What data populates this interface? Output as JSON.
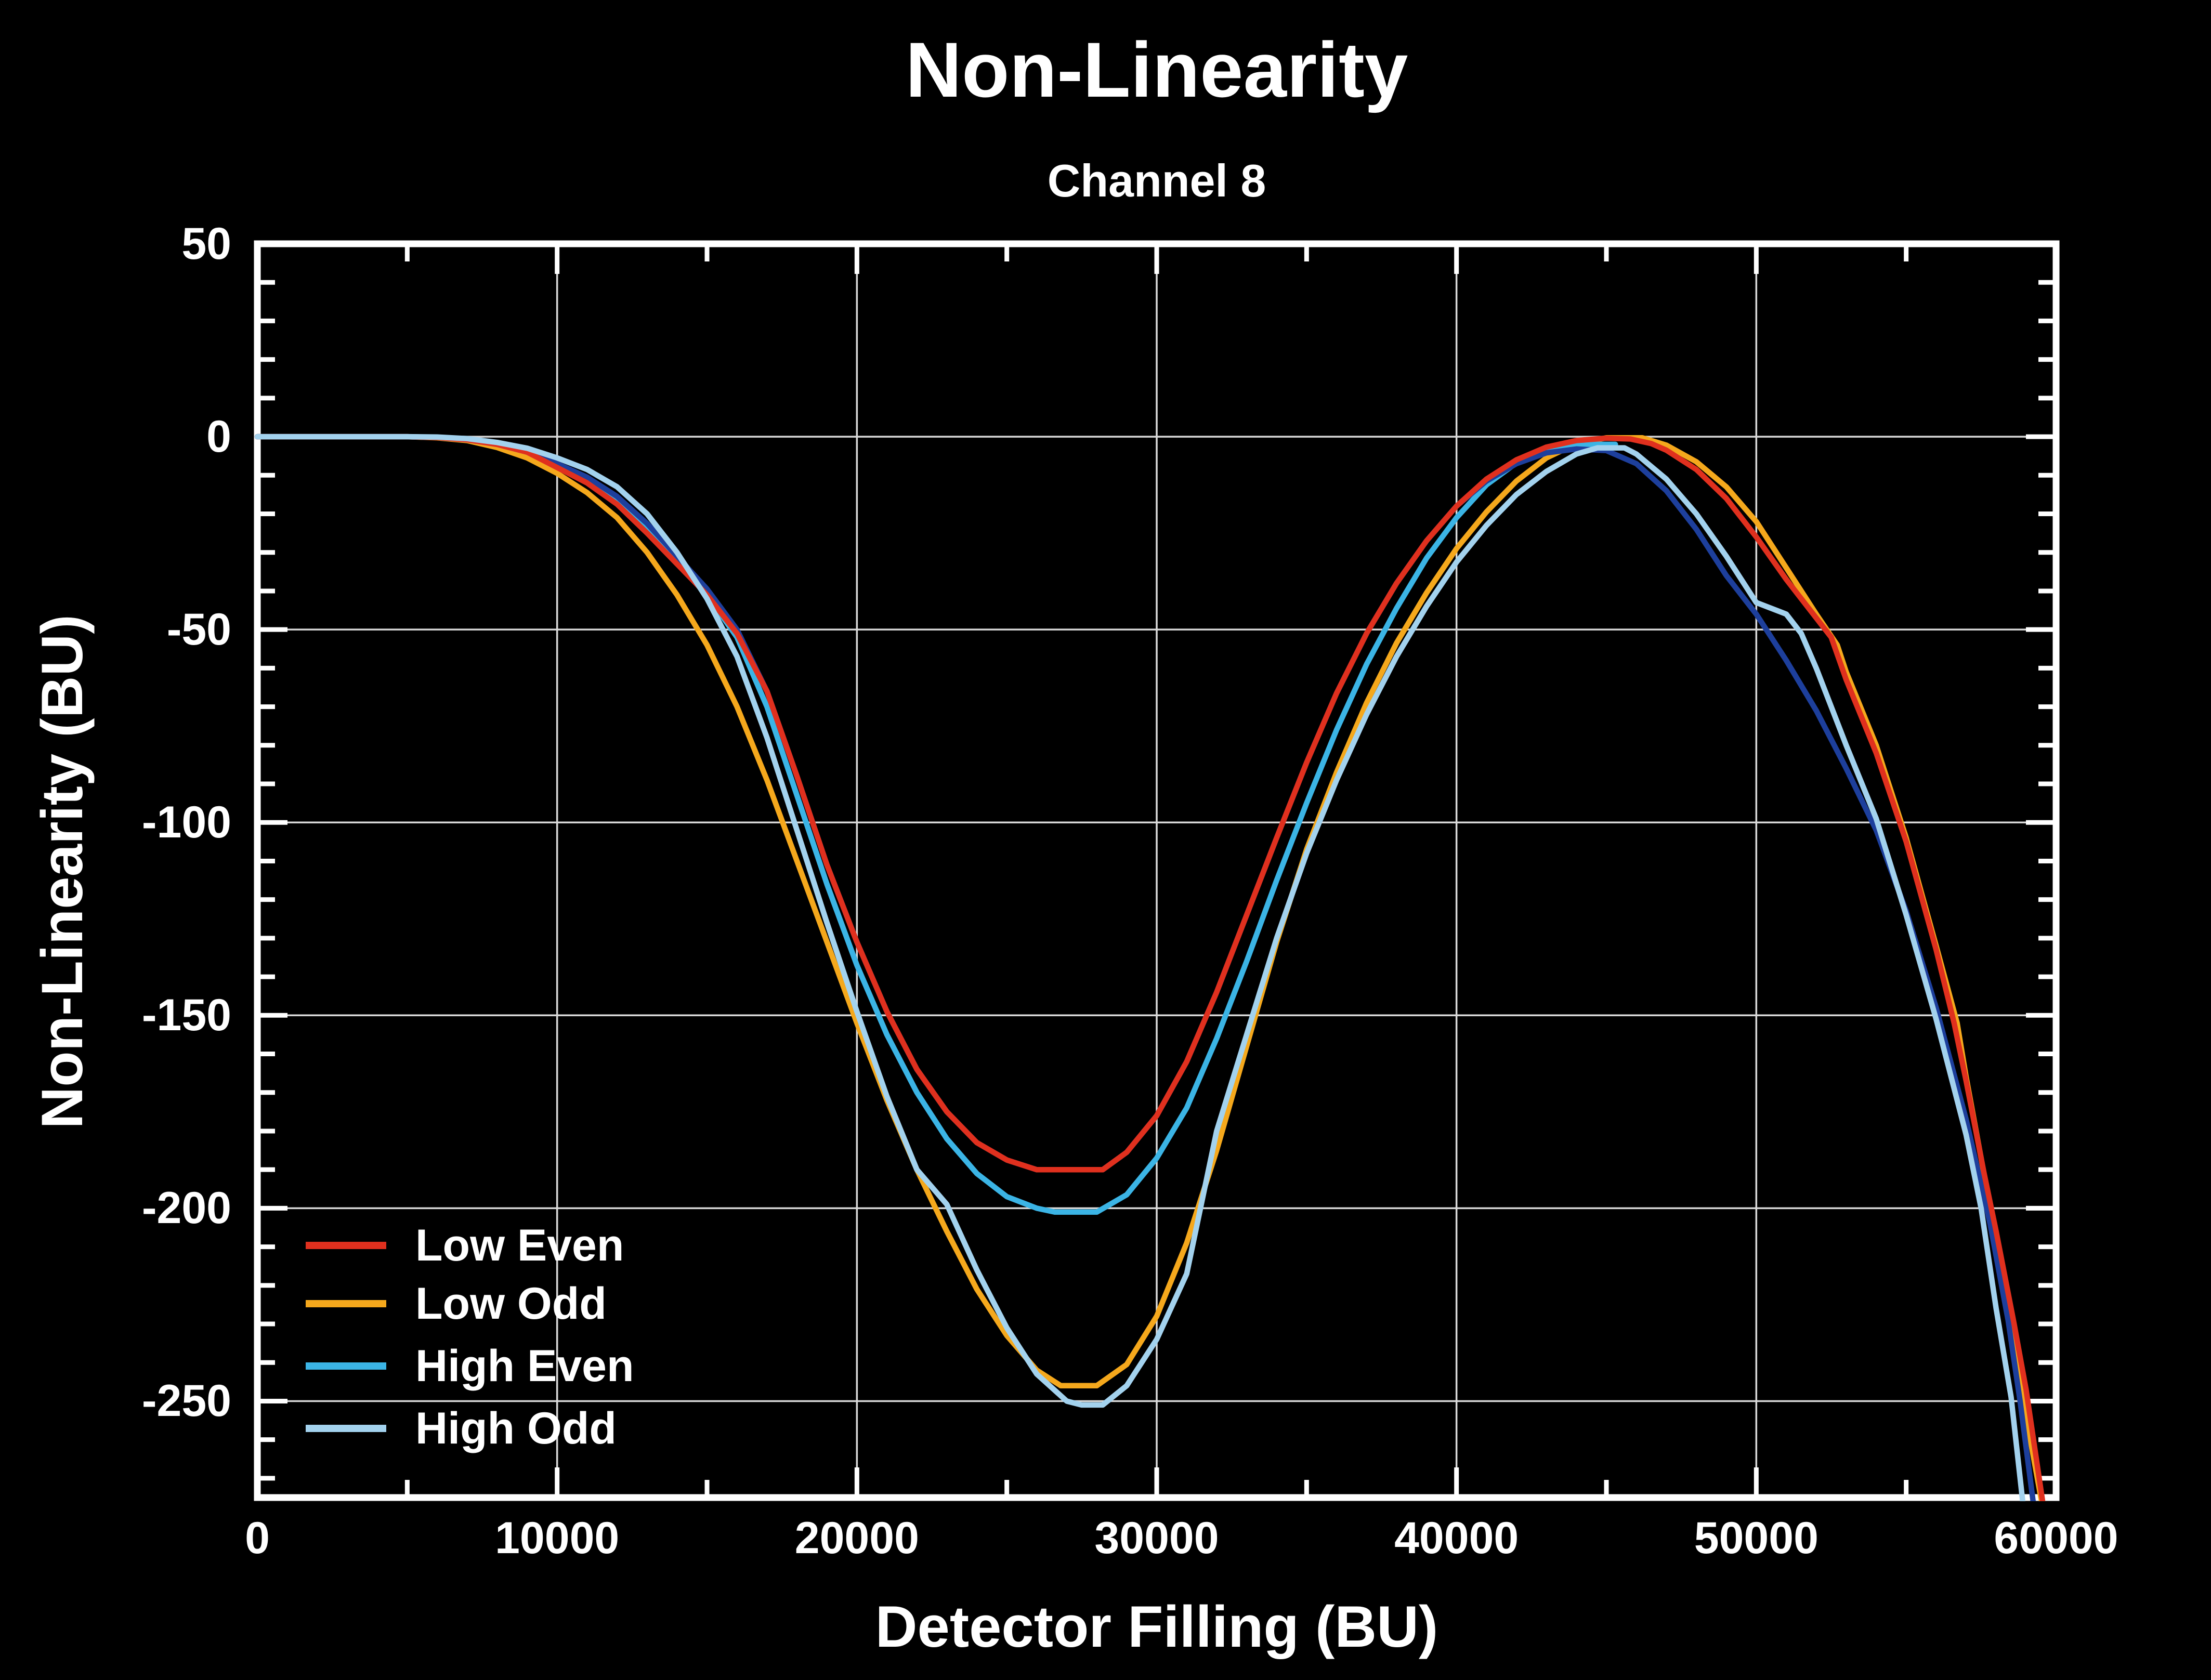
{
  "page": {
    "background_color": "#000000",
    "text_color": "#ffffff"
  },
  "chart_data": {
    "type": "line",
    "title": "Non-Linearity",
    "subtitle": "Channel 8",
    "xlabel": "Detector Filling (BU)",
    "ylabel": "Non-Linearity (BU)",
    "xlim": [
      0,
      60000
    ],
    "ylim": [
      -275,
      50
    ],
    "grid": true,
    "grid_color": "#d9d9d9",
    "axes_color": "#ffffff",
    "background_color": "#000000",
    "x_major_ticks": [
      0,
      10000,
      20000,
      30000,
      40000,
      50000,
      60000
    ],
    "x_tick_labels": [
      "0",
      "10000",
      "20000",
      "30000",
      "40000",
      "50000",
      "60000"
    ],
    "x_minor_ticks": [
      5000,
      15000,
      25000,
      35000,
      45000,
      55000
    ],
    "y_major_ticks": [
      50,
      0,
      -50,
      -100,
      -150,
      -200,
      -250
    ],
    "y_tick_labels": [
      "50",
      "0",
      "-50",
      "-100",
      "-150",
      "-200",
      "-250"
    ],
    "y_minor_step": 10,
    "legend_position": "lower left",
    "legend": [
      {
        "label": "Low Even",
        "color": "#e0301e"
      },
      {
        "label": "Low Odd",
        "color": "#f5a81c"
      },
      {
        "label": "High Even",
        "color": "#3bb4e5"
      },
      {
        "label": "High Odd",
        "color": "#a3d2ee"
      }
    ],
    "series": [
      {
        "name": "Low Odd",
        "color": "#f5a81c",
        "in_legend": true,
        "points": [
          [
            0,
            0
          ],
          [
            5000,
            0
          ],
          [
            6000,
            -0.3
          ],
          [
            7000,
            -1
          ],
          [
            8000,
            -2.8
          ],
          [
            9000,
            -5.5
          ],
          [
            10000,
            -9.5
          ],
          [
            11000,
            -14.5
          ],
          [
            12000,
            -21
          ],
          [
            13000,
            -30
          ],
          [
            14000,
            -41
          ],
          [
            15000,
            -54
          ],
          [
            16000,
            -70
          ],
          [
            17000,
            -89
          ],
          [
            18000,
            -110
          ],
          [
            19000,
            -131
          ],
          [
            20000,
            -152
          ],
          [
            21000,
            -172
          ],
          [
            22000,
            -190
          ],
          [
            23000,
            -206
          ],
          [
            24000,
            -221
          ],
          [
            25000,
            -233
          ],
          [
            26000,
            -242
          ],
          [
            26800,
            -246
          ],
          [
            28000,
            -246
          ],
          [
            29000,
            -240.5
          ],
          [
            30000,
            -228
          ],
          [
            31000,
            -209
          ],
          [
            32000,
            -185
          ],
          [
            33000,
            -158
          ],
          [
            34000,
            -131
          ],
          [
            35000,
            -107
          ],
          [
            36000,
            -87
          ],
          [
            37000,
            -69
          ],
          [
            38000,
            -53.5
          ],
          [
            39000,
            -40.5
          ],
          [
            40000,
            -29
          ],
          [
            41000,
            -19.5
          ],
          [
            42000,
            -11.5
          ],
          [
            43000,
            -5.5
          ],
          [
            44000,
            -1.8
          ],
          [
            45000,
            -0.3
          ],
          [
            46200,
            -0.3
          ],
          [
            47000,
            -2.2
          ],
          [
            48000,
            -6.5
          ],
          [
            49000,
            -13
          ],
          [
            50000,
            -22
          ],
          [
            51000,
            -34
          ],
          [
            52000,
            -46
          ],
          [
            52700,
            -54
          ],
          [
            53000,
            -61
          ],
          [
            54000,
            -80
          ],
          [
            55000,
            -104
          ],
          [
            56000,
            -132
          ],
          [
            56700,
            -152
          ],
          [
            57000,
            -166
          ],
          [
            57500,
            -187
          ],
          [
            58000,
            -209
          ],
          [
            58500,
            -233
          ],
          [
            59000,
            -254
          ],
          [
            59540,
            -277
          ]
        ]
      },
      {
        "name": "High Even",
        "color": "#3bb4e5",
        "in_legend": true,
        "points": [
          [
            0,
            0
          ],
          [
            5000,
            0
          ],
          [
            6000,
            -0.2
          ],
          [
            7000,
            -0.8
          ],
          [
            8000,
            -2
          ],
          [
            9000,
            -4
          ],
          [
            10000,
            -7.5
          ],
          [
            11000,
            -11
          ],
          [
            12000,
            -16.2
          ],
          [
            13000,
            -23.5
          ],
          [
            14000,
            -32
          ],
          [
            15000,
            -41
          ],
          [
            16000,
            -52
          ],
          [
            17000,
            -70
          ],
          [
            18000,
            -93
          ],
          [
            19000,
            -116
          ],
          [
            20000,
            -137
          ],
          [
            21000,
            -155
          ],
          [
            22000,
            -170
          ],
          [
            23000,
            -182
          ],
          [
            24000,
            -191
          ],
          [
            25000,
            -197
          ],
          [
            26000,
            -200
          ],
          [
            26600,
            -201
          ],
          [
            28000,
            -201
          ],
          [
            29000,
            -196.5
          ],
          [
            30000,
            -187
          ],
          [
            31000,
            -174
          ],
          [
            32000,
            -156
          ],
          [
            33000,
            -136
          ],
          [
            34000,
            -115
          ],
          [
            35000,
            -95
          ],
          [
            36000,
            -76
          ],
          [
            37000,
            -59
          ],
          [
            38000,
            -44.5
          ],
          [
            39000,
            -31.5
          ],
          [
            40000,
            -21
          ],
          [
            41000,
            -12.5
          ],
          [
            42000,
            -6.8
          ],
          [
            43000,
            -3.2
          ],
          [
            43800,
            -2
          ],
          [
            45300,
            -2
          ]
        ]
      },
      {
        "name": "High Even (unlabeled dark-blue continuation)",
        "color": "#1d3f9c",
        "in_legend": false,
        "points": [
          [
            0,
            0
          ],
          [
            5000,
            0
          ],
          [
            6000,
            -0.2
          ],
          [
            7000,
            -0.7
          ],
          [
            8000,
            -1.8
          ],
          [
            9000,
            -3.6
          ],
          [
            10000,
            -7
          ],
          [
            11000,
            -10.5
          ],
          [
            12000,
            -15.5
          ],
          [
            13000,
            -22.5
          ],
          [
            14000,
            -31
          ],
          [
            15000,
            -39.5
          ],
          [
            16000,
            -50
          ],
          [
            17000,
            -66
          ],
          [
            18000,
            -88
          ],
          [
            19000,
            -111
          ],
          [
            20000,
            -131
          ],
          [
            21000,
            -149
          ],
          [
            22000,
            -164
          ],
          [
            23000,
            -175
          ],
          [
            24000,
            -183
          ],
          [
            25000,
            -187.5
          ],
          [
            26000,
            -190
          ],
          [
            28200,
            -190
          ],
          [
            29000,
            -185.5
          ],
          [
            30000,
            -176
          ],
          [
            31000,
            -162
          ],
          [
            32000,
            -144
          ],
          [
            33000,
            -124
          ],
          [
            34000,
            -104
          ],
          [
            35000,
            -84.5
          ],
          [
            36000,
            -66.5
          ],
          [
            37000,
            -51
          ],
          [
            38000,
            -38
          ],
          [
            39000,
            -27
          ],
          [
            40000,
            -18
          ],
          [
            41000,
            -11.5
          ],
          [
            42000,
            -7
          ],
          [
            43000,
            -4.2
          ],
          [
            44000,
            -3.2
          ],
          [
            45000,
            -3.6
          ],
          [
            46000,
            -7
          ],
          [
            47000,
            -14
          ],
          [
            48000,
            -24
          ],
          [
            49000,
            -36
          ],
          [
            50000,
            -46
          ],
          [
            51000,
            -58
          ],
          [
            52000,
            -71
          ],
          [
            53000,
            -86
          ],
          [
            54000,
            -102
          ],
          [
            55000,
            -123
          ],
          [
            56000,
            -148
          ],
          [
            57000,
            -177
          ],
          [
            57800,
            -204
          ],
          [
            58400,
            -229
          ],
          [
            58800,
            -250
          ],
          [
            59250,
            -277
          ]
        ]
      },
      {
        "name": "Low Even",
        "color": "#e0301e",
        "in_legend": true,
        "points": [
          [
            0,
            0
          ],
          [
            5000,
            0
          ],
          [
            6000,
            -0.2
          ],
          [
            7000,
            -0.8
          ],
          [
            8000,
            -2
          ],
          [
            9000,
            -4
          ],
          [
            10000,
            -8
          ],
          [
            11000,
            -12
          ],
          [
            12000,
            -17.5
          ],
          [
            13000,
            -25
          ],
          [
            14000,
            -33
          ],
          [
            15000,
            -41
          ],
          [
            16000,
            -51
          ],
          [
            17000,
            -66
          ],
          [
            18000,
            -88
          ],
          [
            19000,
            -111
          ],
          [
            20000,
            -131
          ],
          [
            21000,
            -149
          ],
          [
            22000,
            -164
          ],
          [
            23000,
            -175
          ],
          [
            24000,
            -183
          ],
          [
            25000,
            -187.5
          ],
          [
            26000,
            -190
          ],
          [
            28200,
            -190
          ],
          [
            29000,
            -185.5
          ],
          [
            30000,
            -176
          ],
          [
            31000,
            -162
          ],
          [
            32000,
            -144
          ],
          [
            33000,
            -124
          ],
          [
            34000,
            -104
          ],
          [
            35000,
            -84.5
          ],
          [
            36000,
            -66.5
          ],
          [
            37000,
            -51
          ],
          [
            38000,
            -38
          ],
          [
            39000,
            -27
          ],
          [
            40000,
            -18
          ],
          [
            41000,
            -11
          ],
          [
            42000,
            -6
          ],
          [
            43000,
            -2.7
          ],
          [
            44000,
            -1
          ],
          [
            45000,
            -0.4
          ],
          [
            45800,
            -0.6
          ],
          [
            46500,
            -1.8
          ],
          [
            47000,
            -3.5
          ],
          [
            48000,
            -8.5
          ],
          [
            49000,
            -16
          ],
          [
            50000,
            -26
          ],
          [
            51000,
            -37
          ],
          [
            52000,
            -47
          ],
          [
            52500,
            -52
          ],
          [
            53000,
            -63
          ],
          [
            54000,
            -82
          ],
          [
            55000,
            -105
          ],
          [
            56000,
            -133
          ],
          [
            56600,
            -152
          ],
          [
            57000,
            -167
          ],
          [
            57600,
            -191
          ],
          [
            58000,
            -206
          ],
          [
            58600,
            -230
          ],
          [
            59000,
            -247
          ],
          [
            59570,
            -277
          ]
        ]
      },
      {
        "name": "High Odd",
        "color": "#a3d2ee",
        "in_legend": true,
        "points": [
          [
            0,
            0
          ],
          [
            5000,
            0
          ],
          [
            6000,
            -0.1
          ],
          [
            7000,
            -0.5
          ],
          [
            8000,
            -1.5
          ],
          [
            9000,
            -3
          ],
          [
            10000,
            -5.5
          ],
          [
            11000,
            -8.5
          ],
          [
            12000,
            -13
          ],
          [
            13000,
            -20
          ],
          [
            14000,
            -30
          ],
          [
            15000,
            -42
          ],
          [
            16000,
            -57
          ],
          [
            17000,
            -78
          ],
          [
            18000,
            -102
          ],
          [
            19000,
            -126
          ],
          [
            20000,
            -149
          ],
          [
            21000,
            -171
          ],
          [
            22000,
            -190
          ],
          [
            23000,
            -199
          ],
          [
            24000,
            -216
          ],
          [
            25000,
            -231
          ],
          [
            26000,
            -243
          ],
          [
            27000,
            -250
          ],
          [
            27500,
            -251
          ],
          [
            28200,
            -251
          ],
          [
            29000,
            -246
          ],
          [
            30000,
            -234
          ],
          [
            31000,
            -217
          ],
          [
            32000,
            -180
          ],
          [
            33000,
            -155
          ],
          [
            34000,
            -130
          ],
          [
            35000,
            -108
          ],
          [
            36000,
            -89
          ],
          [
            37000,
            -72
          ],
          [
            38000,
            -57
          ],
          [
            39000,
            -44
          ],
          [
            40000,
            -32.5
          ],
          [
            41000,
            -23
          ],
          [
            42000,
            -15
          ],
          [
            43000,
            -9
          ],
          [
            44000,
            -4.5
          ],
          [
            44700,
            -2.9
          ],
          [
            45600,
            -2.9
          ],
          [
            46000,
            -4.5
          ],
          [
            47000,
            -11
          ],
          [
            48000,
            -20
          ],
          [
            49000,
            -31
          ],
          [
            50000,
            -43
          ],
          [
            51000,
            -46
          ],
          [
            51500,
            -51
          ],
          [
            52000,
            -60
          ],
          [
            53000,
            -80
          ],
          [
            54000,
            -99
          ],
          [
            55000,
            -124
          ],
          [
            56000,
            -151
          ],
          [
            57000,
            -181
          ],
          [
            57500,
            -200
          ],
          [
            58000,
            -226
          ],
          [
            58500,
            -249
          ],
          [
            58900,
            -277
          ]
        ]
      }
    ]
  }
}
